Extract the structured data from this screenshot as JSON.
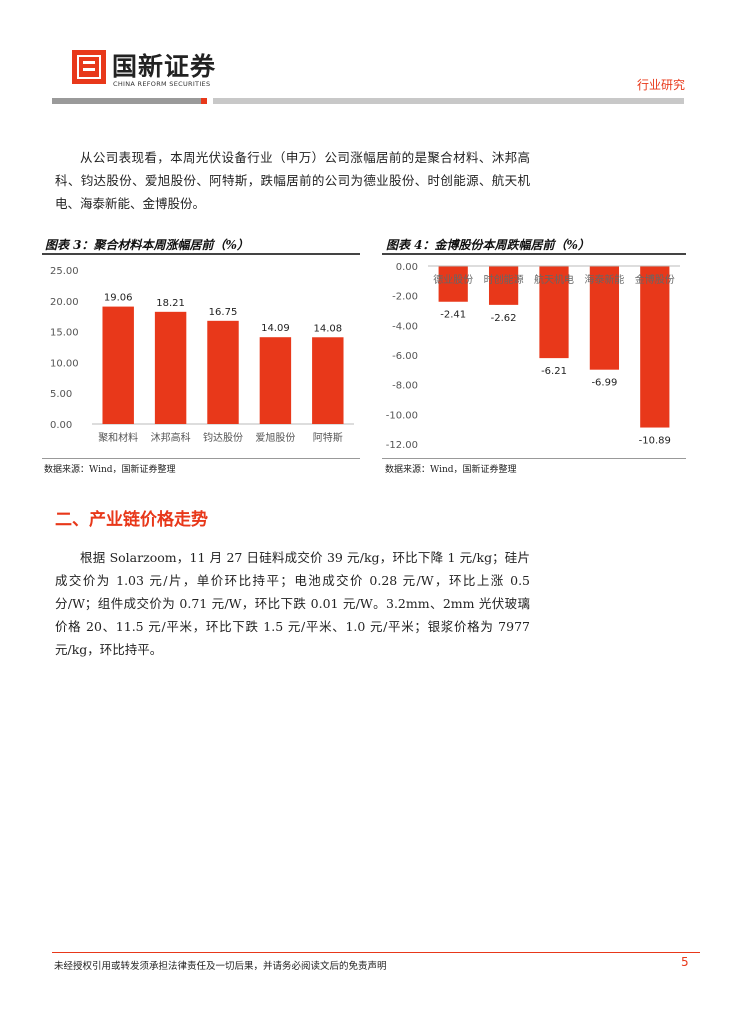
{
  "header": {
    "brand_cn": "国新证券",
    "brand_en": "CHINA REFORM SECURITIES",
    "section_label": "行业研究",
    "accent_color": "#e8381a"
  },
  "intro_paragraph": "从公司表现看，本周光伏设备行业（申万）公司涨幅居前的是聚合材料、沐邦高科、钧达股份、爱旭股份、阿特斯，跌幅居前的公司为德业股份、时创能源、航天机电、海泰新能、金博股份。",
  "figure3": {
    "title": "图表 3：聚合材料本周涨幅居前（%）",
    "source": "数据来源：Wind，国新证券整理"
  },
  "figure4": {
    "title": "图表 4：金博股份本周跌幅居前（%）",
    "source": "数据来源：Wind，国新证券整理"
  },
  "section_heading": "二、产业链价格走势",
  "prices_paragraph": "根据 Solarzoom，11 月 27 日硅料成交价 39 元/kg，环比下降 1 元/kg；硅片成交价为 1.03 元/片，单价环比持平；电池成交价 0.28 元/W，环比上涨 0.5 分/W；组件成交价为 0.71 元/W，环比下跌 0.01 元/W。3.2mm、2mm 光伏玻璃价格 20、11.5 元/平米，环比下跌 1.5 元/平米、1.0 元/平米；银浆价格为 7977 元/kg，环比持平。",
  "footer": {
    "disclaimer": "未经授权引用或转发须承担法律责任及一切后果，并请务必阅读文后的免责声明",
    "page_number": "5"
  },
  "chart_data": [
    {
      "type": "bar",
      "title": "图表 3：聚合材料本周涨幅居前（%）",
      "categories": [
        "聚和材料",
        "沐邦高科",
        "钧达股份",
        "爱旭股份",
        "阿特斯"
      ],
      "values": [
        19.06,
        18.21,
        16.75,
        14.09,
        14.08
      ],
      "value_labels": [
        "19.06",
        "18.21",
        "16.75",
        "14.09",
        "14.08"
      ],
      "yticks": [
        "0.00",
        "5.00",
        "10.00",
        "15.00",
        "20.00",
        "25.00"
      ],
      "ylim": [
        0,
        25
      ],
      "bar_color": "#e8381a",
      "grid": false
    },
    {
      "type": "bar",
      "title": "图表 4：金博股份本周跌幅居前（%）",
      "categories": [
        "德业股份",
        "时创能源",
        "航天机电",
        "海泰新能",
        "金博股份"
      ],
      "values": [
        -2.41,
        -2.62,
        -6.21,
        -6.99,
        -10.89
      ],
      "value_labels": [
        "-2.41",
        "-2.62",
        "-6.21",
        "-6.99",
        "-10.89"
      ],
      "yticks": [
        "0.00",
        "-2.00",
        "-4.00",
        "-6.00",
        "-8.00",
        "-10.00",
        "-12.00"
      ],
      "ylim": [
        -12,
        0
      ],
      "bar_color": "#e8381a",
      "grid": false
    }
  ]
}
